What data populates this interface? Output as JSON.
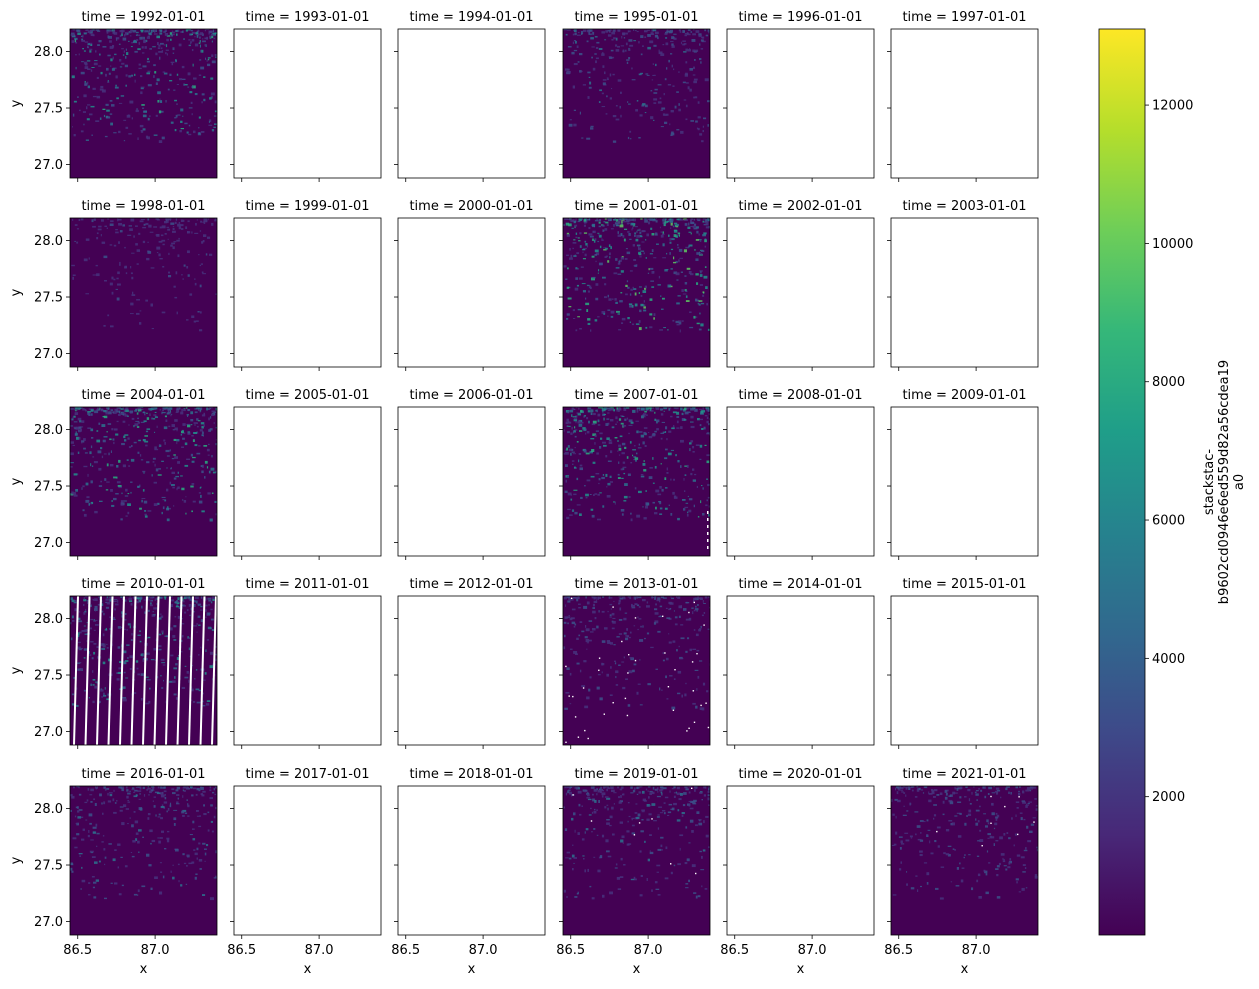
{
  "chart_data": {
    "type": "heatmap",
    "layout": {
      "rows": 5,
      "cols": 6
    },
    "panel_title_prefix": "time = ",
    "xlabel": "x",
    "ylabel": "y",
    "x_ticks": [
      86.5,
      87.0
    ],
    "x_tick_labels": [
      "86.5",
      "87.0"
    ],
    "xlim": [
      86.45,
      87.4
    ],
    "y_ticks": [
      27.0,
      27.5,
      28.0
    ],
    "y_tick_labels": [
      "27.0",
      "27.5",
      "28.0"
    ],
    "ylim": [
      26.88,
      28.2
    ],
    "panels": [
      {
        "time": "1992-01-01",
        "has_data": true,
        "intensity": 0.85,
        "artifact": "none"
      },
      {
        "time": "1993-01-01",
        "has_data": false
      },
      {
        "time": "1994-01-01",
        "has_data": false
      },
      {
        "time": "1995-01-01",
        "has_data": true,
        "intensity": 0.6,
        "artifact": "none"
      },
      {
        "time": "1996-01-01",
        "has_data": false
      },
      {
        "time": "1997-01-01",
        "has_data": false
      },
      {
        "time": "1998-01-01",
        "has_data": true,
        "intensity": 0.4,
        "artifact": "none"
      },
      {
        "time": "1999-01-01",
        "has_data": false
      },
      {
        "time": "2000-01-01",
        "has_data": false
      },
      {
        "time": "2001-01-01",
        "has_data": true,
        "intensity": 1.0,
        "artifact": "none"
      },
      {
        "time": "2002-01-01",
        "has_data": false
      },
      {
        "time": "2003-01-01",
        "has_data": false
      },
      {
        "time": "2004-01-01",
        "has_data": true,
        "intensity": 0.9,
        "artifact": "none"
      },
      {
        "time": "2005-01-01",
        "has_data": false
      },
      {
        "time": "2006-01-01",
        "has_data": false
      },
      {
        "time": "2007-01-01",
        "has_data": true,
        "intensity": 0.9,
        "artifact": "edge"
      },
      {
        "time": "2008-01-01",
        "has_data": false
      },
      {
        "time": "2009-01-01",
        "has_data": false
      },
      {
        "time": "2010-01-01",
        "has_data": true,
        "intensity": 0.8,
        "artifact": "stripes"
      },
      {
        "time": "2011-01-01",
        "has_data": false
      },
      {
        "time": "2012-01-01",
        "has_data": false
      },
      {
        "time": "2013-01-01",
        "has_data": true,
        "intensity": 0.55,
        "artifact": "dots"
      },
      {
        "time": "2014-01-01",
        "has_data": false
      },
      {
        "time": "2015-01-01",
        "has_data": false
      },
      {
        "time": "2016-01-01",
        "has_data": true,
        "intensity": 0.6,
        "artifact": "none"
      },
      {
        "time": "2017-01-01",
        "has_data": false
      },
      {
        "time": "2018-01-01",
        "has_data": false
      },
      {
        "time": "2019-01-01",
        "has_data": true,
        "intensity": 0.6,
        "artifact": "fewdots"
      },
      {
        "time": "2020-01-01",
        "has_data": false
      },
      {
        "time": "2021-01-01",
        "has_data": true,
        "intensity": 0.55,
        "artifact": "fewdots"
      }
    ],
    "colorbar": {
      "colormap": "viridis",
      "range": [
        0,
        13100
      ],
      "ticks": [
        2000,
        4000,
        6000,
        8000,
        10000,
        12000
      ],
      "tick_labels": [
        "2000",
        "4000",
        "6000",
        "8000",
        "10000",
        "12000"
      ],
      "label_lines": [
        "stackstac-",
        "b9602cd0946e6ed559d82a56cdea19",
        "a0"
      ]
    },
    "colors": {
      "background": "#440154",
      "viridis_stops": [
        "#440154",
        "#482878",
        "#3e4989",
        "#31688e",
        "#26828e",
        "#1f9e89",
        "#35b779",
        "#6ece58",
        "#b5de2b",
        "#fde725"
      ],
      "axis": "#000000"
    }
  }
}
